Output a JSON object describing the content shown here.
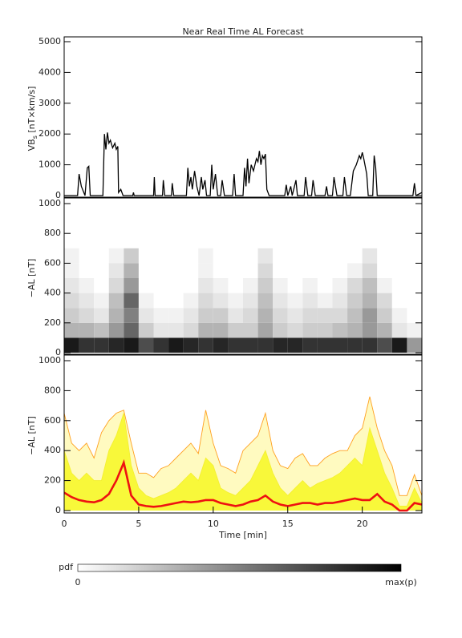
{
  "chart_data": [
    {
      "type": "line",
      "title": "Near Real Time AL Forecast",
      "ylabel": {
        "main": "VB",
        "sub": "s",
        "unit": " [nT×km/s]"
      },
      "color": "#000000",
      "xlim": [
        0,
        24
      ],
      "ylim": [
        0,
        5000
      ],
      "yticks": [
        0,
        1000,
        2000,
        3000,
        4000,
        5000
      ],
      "x": [
        0,
        0.9,
        1.0,
        1.15,
        1.4,
        1.55,
        1.65,
        1.75,
        2.6,
        2.7,
        2.8,
        2.9,
        3.0,
        3.1,
        3.25,
        3.4,
        3.5,
        3.6,
        3.65,
        3.8,
        3.95,
        4.6,
        4.65,
        4.7,
        6.0,
        6.05,
        6.1,
        6.6,
        6.65,
        6.75,
        7.2,
        7.25,
        7.35,
        8.2,
        8.3,
        8.4,
        8.5,
        8.6,
        8.75,
        8.9,
        9.05,
        9.2,
        9.3,
        9.45,
        9.55,
        9.8,
        9.9,
        10.0,
        10.15,
        10.3,
        10.5,
        10.6,
        10.75,
        11.3,
        11.4,
        11.5,
        12.0,
        12.1,
        12.2,
        12.3,
        12.4,
        12.55,
        12.7,
        12.9,
        13.0,
        13.1,
        13.2,
        13.3,
        13.4,
        13.5,
        13.6,
        13.75,
        14.8,
        14.9,
        15.0,
        15.2,
        15.3,
        15.55,
        15.65,
        16.1,
        16.2,
        16.35,
        16.6,
        16.7,
        16.85,
        17.5,
        17.6,
        17.7,
        18.0,
        18.1,
        18.3,
        18.7,
        18.8,
        18.95,
        19.2,
        19.4,
        19.6,
        19.8,
        19.9,
        20.0,
        20.1,
        20.3,
        20.4,
        20.7,
        20.8,
        20.9,
        21.0,
        23.4,
        23.5,
        23.6,
        24.0
      ],
      "values": [
        0,
        0,
        700,
        300,
        0,
        900,
        950,
        0,
        0,
        2000,
        1500,
        2050,
        1700,
        1800,
        1550,
        1700,
        1500,
        1600,
        100,
        200,
        0,
        0,
        100,
        0,
        0,
        600,
        0,
        0,
        500,
        0,
        0,
        400,
        0,
        0,
        900,
        300,
        600,
        200,
        800,
        300,
        0,
        600,
        200,
        500,
        0,
        0,
        1000,
        200,
        700,
        0,
        0,
        500,
        0,
        0,
        700,
        0,
        0,
        900,
        300,
        1200,
        400,
        1000,
        800,
        1200,
        1100,
        1450,
        1000,
        1300,
        1200,
        1350,
        200,
        0,
        0,
        350,
        0,
        300,
        0,
        500,
        0,
        0,
        600,
        0,
        0,
        500,
        0,
        0,
        300,
        0,
        0,
        600,
        0,
        0,
        600,
        0,
        0,
        800,
        1000,
        1300,
        1200,
        1400,
        1200,
        700,
        0,
        0,
        1300,
        900,
        0,
        0,
        400,
        0,
        100
      ]
    },
    {
      "type": "heatmap",
      "ylabel": "−AL [nT]",
      "xlim": [
        0,
        24
      ],
      "ylim": [
        0,
        1000
      ],
      "yticks": [
        0,
        200,
        400,
        600,
        800,
        1000
      ],
      "x_bins": [
        0,
        1,
        2,
        3,
        4,
        5,
        6,
        7,
        8,
        9,
        10,
        11,
        12,
        13,
        14,
        15,
        16,
        17,
        18,
        19,
        20,
        21,
        22,
        23,
        24
      ],
      "y_bins": [
        0,
        100,
        200,
        300,
        400,
        500,
        600,
        700
      ],
      "z": [
        [
          0.9,
          0.8,
          0.8,
          0.85,
          0.9,
          0.7,
          0.8,
          0.9,
          0.85,
          0.8,
          0.85,
          0.8,
          0.8,
          0.8,
          0.85,
          0.85,
          0.8,
          0.8,
          0.8,
          0.8,
          0.8,
          0.7,
          0.9,
          0.4
        ],
        [
          0.3,
          0.3,
          0.25,
          0.4,
          0.6,
          0.2,
          0.1,
          0.1,
          0.15,
          0.3,
          0.3,
          0.2,
          0.2,
          0.35,
          0.2,
          0.15,
          0.2,
          0.2,
          0.25,
          0.3,
          0.4,
          0.3,
          0.1,
          0.05
        ],
        [
          0.2,
          0.15,
          0.1,
          0.3,
          0.5,
          0.1,
          0.05,
          0.05,
          0.1,
          0.2,
          0.2,
          0.1,
          0.15,
          0.3,
          0.15,
          0.1,
          0.15,
          0.15,
          0.15,
          0.25,
          0.4,
          0.2,
          0.05,
          0
        ],
        [
          0.15,
          0.1,
          0.05,
          0.25,
          0.6,
          0.05,
          0,
          0,
          0.05,
          0.15,
          0.1,
          0.05,
          0.1,
          0.25,
          0.1,
          0.05,
          0.1,
          0.05,
          0.1,
          0.2,
          0.3,
          0.15,
          0,
          0
        ],
        [
          0.1,
          0.05,
          0,
          0.15,
          0.4,
          0,
          0,
          0,
          0,
          0.1,
          0.05,
          0,
          0.05,
          0.2,
          0.05,
          0,
          0.05,
          0,
          0.05,
          0.15,
          0.25,
          0.05,
          0,
          0
        ],
        [
          0.05,
          0,
          0,
          0.1,
          0.3,
          0,
          0,
          0,
          0,
          0.05,
          0,
          0,
          0,
          0.15,
          0,
          0,
          0,
          0,
          0,
          0.05,
          0.15,
          0,
          0,
          0
        ],
        [
          0.05,
          0,
          0,
          0.05,
          0.2,
          0,
          0,
          0,
          0,
          0.05,
          0,
          0,
          0,
          0.1,
          0,
          0,
          0,
          0,
          0,
          0,
          0.1,
          0,
          0,
          0
        ]
      ]
    },
    {
      "type": "band_line",
      "ylabel": "−AL [nT]",
      "xlabel": "Time [min]",
      "xlim": [
        0,
        24
      ],
      "ylim": [
        0,
        1000
      ],
      "xticks": [
        0,
        5,
        10,
        15,
        20
      ],
      "yticks": [
        0,
        200,
        400,
        600,
        800,
        1000
      ],
      "x": [
        0,
        0.5,
        1,
        1.5,
        2,
        2.5,
        3,
        3.5,
        4,
        4.5,
        5,
        5.5,
        6,
        6.5,
        7,
        7.5,
        8,
        8.5,
        9,
        9.5,
        10,
        10.5,
        11,
        11.5,
        12,
        12.5,
        13,
        13.5,
        14,
        14.5,
        15,
        15.5,
        16,
        16.5,
        17,
        17.5,
        18,
        18.5,
        19,
        19.5,
        20,
        20.5,
        21,
        21.5,
        22,
        22.5,
        23,
        23.5,
        24
      ],
      "series": [
        {
          "color": "#ffa020",
          "fill": "#fffac0",
          "values": [
            650,
            450,
            400,
            450,
            350,
            520,
            600,
            650,
            670,
            450,
            250,
            250,
            220,
            280,
            300,
            350,
            400,
            450,
            380,
            670,
            450,
            300,
            280,
            250,
            400,
            450,
            500,
            650,
            400,
            300,
            280,
            350,
            380,
            300,
            300,
            350,
            380,
            400,
            400,
            500,
            550,
            760,
            550,
            400,
            300,
            100,
            100,
            240,
            100
          ]
        },
        {
          "color": "#f4f030",
          "fill": "#f8f83a",
          "values": [
            400,
            250,
            200,
            250,
            200,
            200,
            400,
            500,
            650,
            300,
            150,
            100,
            80,
            100,
            120,
            150,
            200,
            250,
            200,
            350,
            300,
            150,
            120,
            100,
            150,
            200,
            300,
            400,
            250,
            150,
            100,
            150,
            200,
            150,
            180,
            200,
            220,
            250,
            300,
            350,
            300,
            550,
            400,
            250,
            150,
            30,
            30,
            150,
            50
          ]
        },
        {
          "color": "#ee1111",
          "values": [
            120,
            90,
            70,
            60,
            55,
            70,
            110,
            200,
            320,
            100,
            40,
            30,
            25,
            30,
            40,
            50,
            60,
            55,
            60,
            70,
            70,
            50,
            40,
            30,
            40,
            60,
            70,
            100,
            60,
            40,
            30,
            40,
            50,
            50,
            40,
            50,
            50,
            60,
            70,
            80,
            70,
            70,
            110,
            60,
            40,
            0,
            0,
            50,
            40
          ]
        }
      ]
    }
  ],
  "colorbar": {
    "label": "pdf",
    "min_label": "0",
    "max_label": "max(p)"
  }
}
